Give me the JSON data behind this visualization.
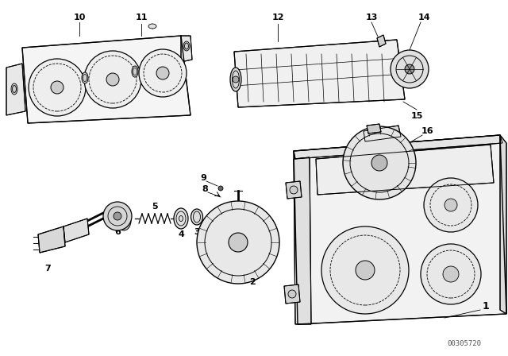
{
  "bg_color": "#ffffff",
  "line_color": "#000000",
  "watermark": "00305720"
}
